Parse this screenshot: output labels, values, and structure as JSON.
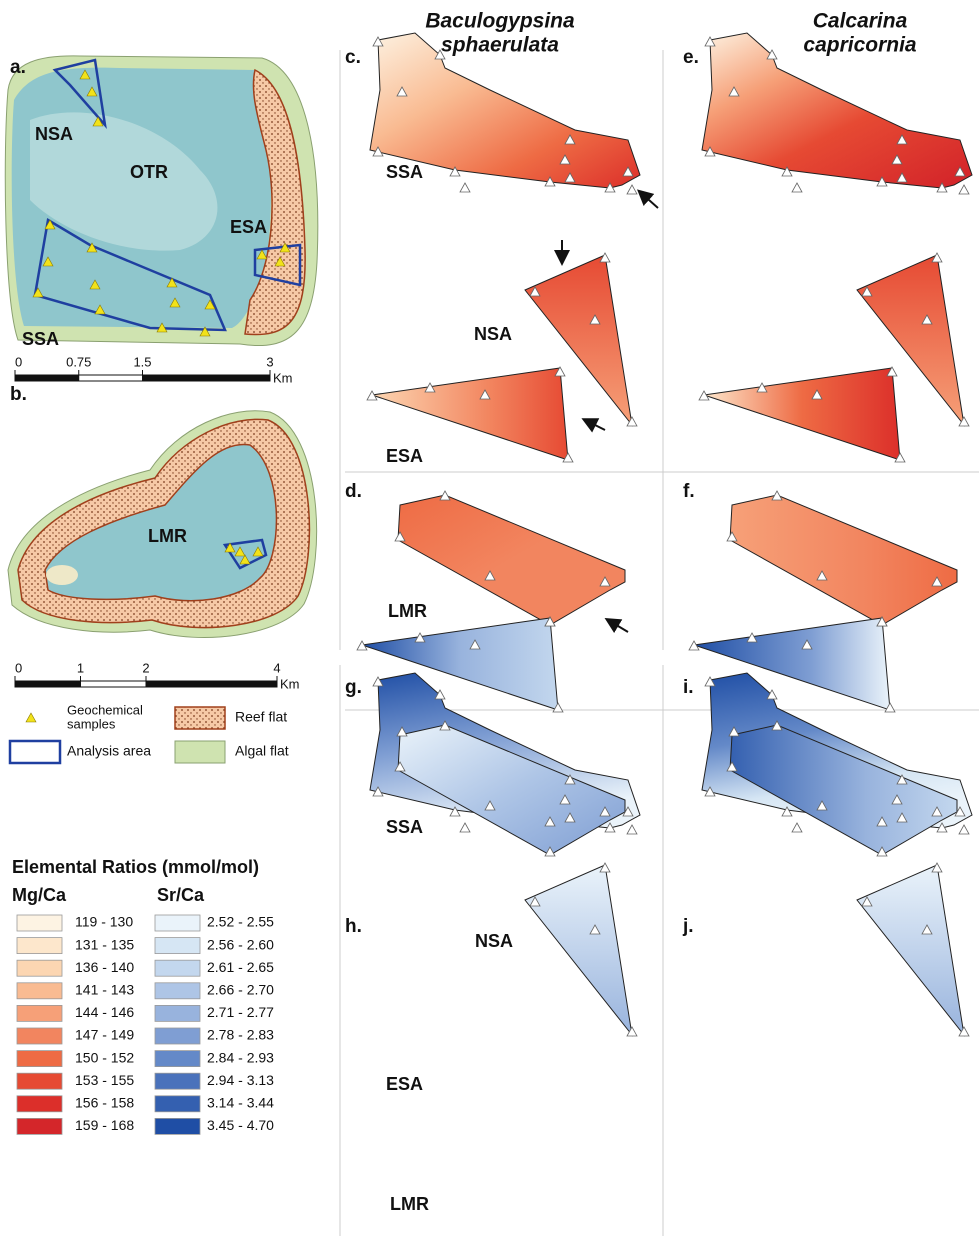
{
  "column_titles": [
    [
      "Baculogypsina",
      "sphaerulata"
    ],
    [
      "Calcarina",
      "capricornia"
    ]
  ],
  "panels": [
    "a.",
    "b.",
    "c.",
    "d.",
    "e.",
    "f.",
    "g.",
    "h.",
    "i.",
    "j."
  ],
  "map_a": {
    "labels": [
      "NSA",
      "OTR",
      "ESA",
      "SSA"
    ],
    "scale": {
      "ticks": [
        0,
        0.75,
        1.5,
        3
      ],
      "unit": "Km"
    }
  },
  "map_b": {
    "labels": [
      "LMR"
    ],
    "scale": {
      "ticks": [
        0,
        1,
        2,
        4
      ],
      "unit": "Km"
    }
  },
  "map_legend": [
    {
      "lines": [
        "Geochemical",
        "samples"
      ]
    },
    {
      "lines": [
        "Reef flat"
      ]
    },
    {
      "lines": [
        "Analysis area"
      ]
    },
    {
      "lines": [
        "Algal flat"
      ]
    }
  ],
  "panel_labels": {
    "c": [
      "SSA",
      "NSA",
      "ESA"
    ],
    "d": [
      "LMR"
    ],
    "g": [
      "SSA",
      "NSA",
      "ESA"
    ],
    "h": [
      "LMR"
    ]
  },
  "ratio_legend": {
    "title": "Elemental Ratios (mmol/mol)",
    "groups": [
      {
        "name": "Mg/Ca",
        "items": [
          {
            "label": "119 - 130",
            "color": "#fdf3e3"
          },
          {
            "label": "131 - 135",
            "color": "#fde7cc"
          },
          {
            "label": "136 - 140",
            "color": "#fcd6b2"
          },
          {
            "label": "141 - 143",
            "color": "#f9bb92"
          },
          {
            "label": "144 - 146",
            "color": "#f6a078"
          },
          {
            "label": "147 - 149",
            "color": "#f2855f"
          },
          {
            "label": "150 - 152",
            "color": "#ee6b44"
          },
          {
            "label": "153 - 155",
            "color": "#e64a33"
          },
          {
            "label": "156 - 158",
            "color": "#dc2f2a"
          },
          {
            "label": "159 - 168",
            "color": "#d4262a"
          }
        ]
      },
      {
        "name": "Sr/Ca",
        "items": [
          {
            "label": "2.52 - 2.55",
            "color": "#eaf3fa"
          },
          {
            "label": "2.56 - 2.60",
            "color": "#d6e6f4"
          },
          {
            "label": "2.61 - 2.65",
            "color": "#c3d7ee"
          },
          {
            "label": "2.66 - 2.70",
            "color": "#aec5e6"
          },
          {
            "label": "2.71 - 2.77",
            "color": "#98b3dd"
          },
          {
            "label": "2.78 - 2.83",
            "color": "#7f9ed3"
          },
          {
            "label": "2.84 - 2.93",
            "color": "#6489c8"
          },
          {
            "label": "2.94 - 3.13",
            "color": "#4a72bb"
          },
          {
            "label": "3.14 - 3.44",
            "color": "#3460b0"
          },
          {
            "label": "3.45 - 4.70",
            "color": "#1f4ea5"
          }
        ]
      }
    ]
  }
}
